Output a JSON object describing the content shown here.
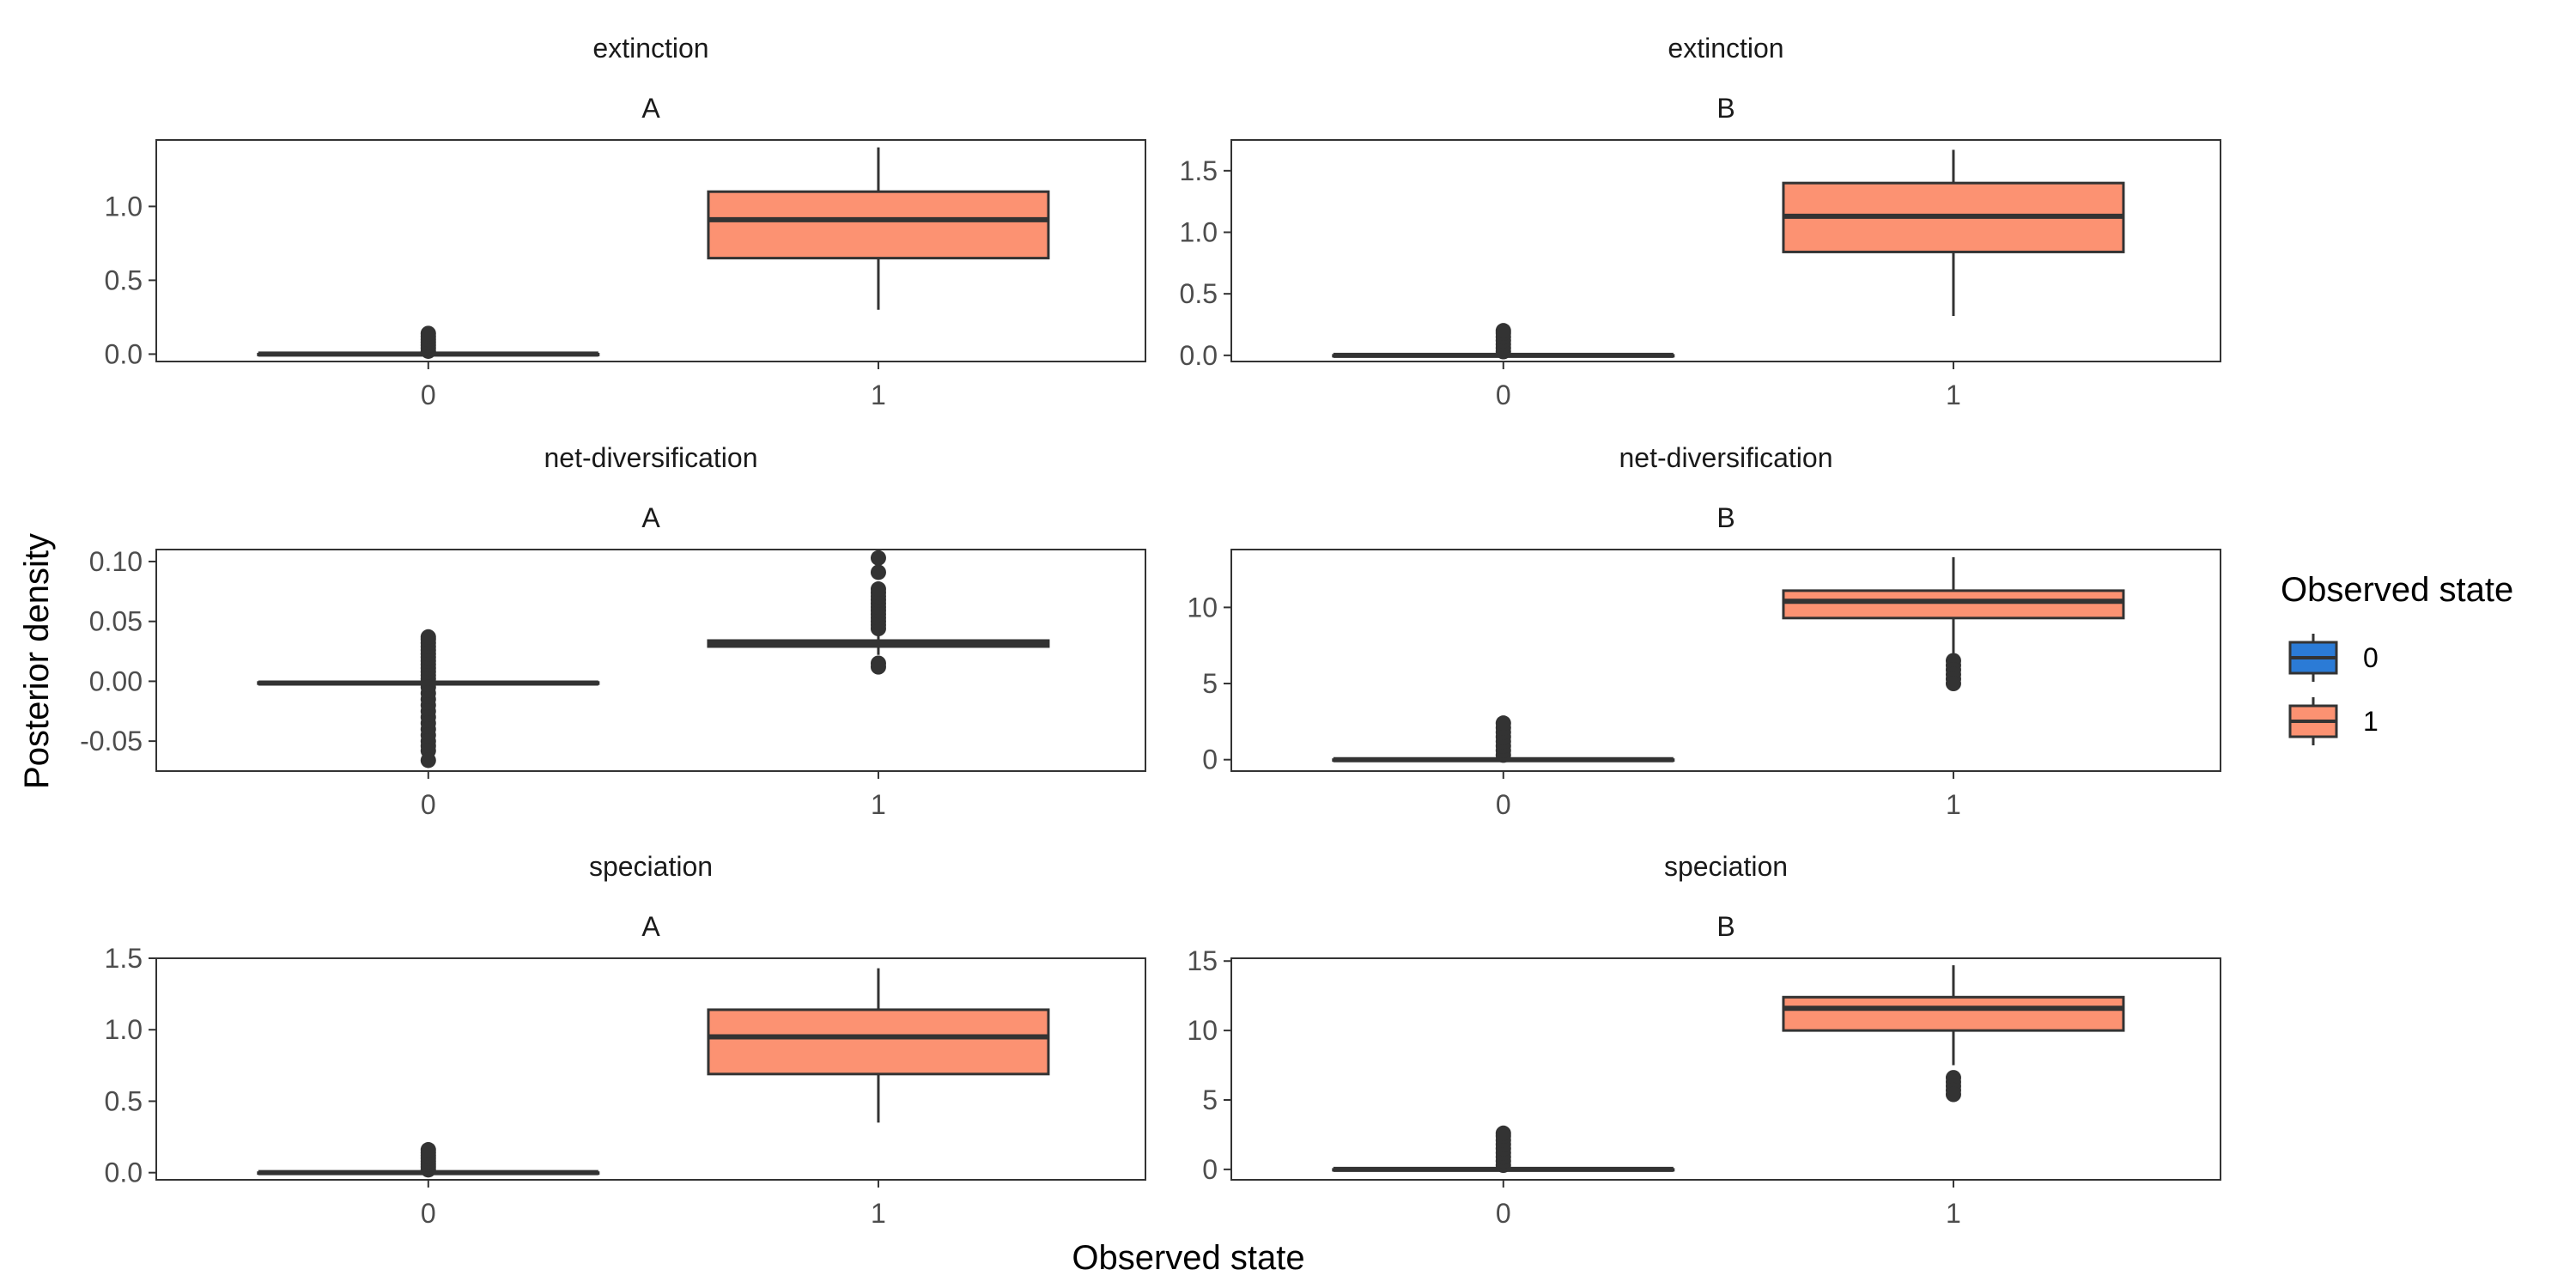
{
  "chart_data": {
    "type": "box",
    "xlabel": "Observed state",
    "ylabel": "Posterior density",
    "legend": {
      "title": "Observed state",
      "position": "right",
      "entries": [
        {
          "label": "0",
          "color": "#2B7BD6"
        },
        {
          "label": "1",
          "color": "#FC9272"
        }
      ]
    },
    "grid": false,
    "categories": [
      "0",
      "1"
    ],
    "panels": [
      {
        "facet_top": "extinction",
        "facet_sub": "A",
        "ylim": [
          -0.05,
          1.45
        ],
        "yticks": [
          0.0,
          0.5,
          1.0
        ],
        "tick_labels": [
          "0.0",
          "0.5",
          "1.0"
        ],
        "boxes": [
          {
            "category": "0",
            "q1": 0.0,
            "median": 0.0,
            "q3": 0.0,
            "whisker_low": 0.0,
            "whisker_high": 0.0,
            "outliers": [
              0.02,
              0.04,
              0.06,
              0.08,
              0.1,
              0.12,
              0.14
            ]
          },
          {
            "category": "1",
            "q1": 0.65,
            "median": 0.91,
            "q3": 1.1,
            "whisker_low": 0.3,
            "whisker_high": 1.4,
            "outliers": []
          }
        ]
      },
      {
        "facet_top": "extinction",
        "facet_sub": "B",
        "ylim": [
          -0.05,
          1.75
        ],
        "yticks": [
          0.0,
          0.5,
          1.0,
          1.5
        ],
        "tick_labels": [
          "0.0",
          "0.5",
          "1.0",
          "1.5"
        ],
        "boxes": [
          {
            "category": "0",
            "q1": 0.0,
            "median": 0.0,
            "q3": 0.0,
            "whisker_low": 0.0,
            "whisker_high": 0.0,
            "outliers": [
              0.03,
              0.06,
              0.09,
              0.12,
              0.15,
              0.18,
              0.2
            ]
          },
          {
            "category": "1",
            "q1": 0.84,
            "median": 1.13,
            "q3": 1.4,
            "whisker_low": 0.32,
            "whisker_high": 1.67,
            "outliers": []
          }
        ]
      },
      {
        "facet_top": "net-diversification",
        "facet_sub": "A",
        "ylim": [
          -0.075,
          0.11
        ],
        "yticks": [
          -0.05,
          0.0,
          0.05,
          0.1
        ],
        "tick_labels": [
          "-0.05",
          "0.00",
          "0.05",
          "0.10"
        ],
        "boxes": [
          {
            "category": "0",
            "q1": -0.002,
            "median": -0.0015,
            "q3": -0.001,
            "whisker_low": -0.002,
            "whisker_high": -0.001,
            "outliers": [
              0.002,
              0.005,
              0.008,
              0.011,
              0.014,
              0.017,
              0.02,
              0.023,
              0.026,
              0.029,
              0.032,
              0.035,
              0.037,
              -0.005,
              -0.01,
              -0.015,
              -0.02,
              -0.025,
              -0.03,
              -0.035,
              -0.04,
              -0.045,
              -0.05,
              -0.054,
              -0.058,
              -0.066
            ]
          },
          {
            "category": "1",
            "q1": 0.029,
            "median": 0.0315,
            "q3": 0.034,
            "whisker_low": 0.022,
            "whisker_high": 0.041,
            "outliers": [
              0.044,
              0.047,
              0.05,
              0.053,
              0.056,
              0.059,
              0.062,
              0.065,
              0.068,
              0.071,
              0.074,
              0.077,
              0.091,
              0.103,
              0.015,
              0.012
            ]
          }
        ]
      },
      {
        "facet_top": "net-diversification",
        "facet_sub": "B",
        "ylim": [
          -0.75,
          13.8
        ],
        "yticks": [
          0,
          5,
          10
        ],
        "tick_labels": [
          "0",
          "5",
          "10"
        ],
        "boxes": [
          {
            "category": "0",
            "q1": 0.0,
            "median": 0.0,
            "q3": 0.0,
            "whisker_low": 0.0,
            "whisker_high": 0.0,
            "outliers": [
              0.3,
              0.6,
              0.9,
              1.2,
              1.5,
              1.8,
              2.1,
              2.4
            ]
          },
          {
            "category": "1",
            "q1": 9.3,
            "median": 10.4,
            "q3": 11.1,
            "whisker_low": 7.0,
            "whisker_high": 13.3,
            "outliers": [
              6.5,
              6.2,
              5.9,
              5.6,
              5.3,
              5.0
            ]
          }
        ]
      },
      {
        "facet_top": "speciation",
        "facet_sub": "A",
        "ylim": [
          -0.05,
          1.5
        ],
        "yticks": [
          0.0,
          0.5,
          1.0,
          1.5
        ],
        "tick_labels": [
          "0.0",
          "0.5",
          "1.0",
          "1.5"
        ],
        "boxes": [
          {
            "category": "0",
            "q1": 0.0,
            "median": 0.0,
            "q3": 0.0,
            "whisker_low": 0.0,
            "whisker_high": 0.0,
            "outliers": [
              0.02,
              0.04,
              0.06,
              0.08,
              0.1,
              0.12,
              0.14,
              0.16
            ]
          },
          {
            "category": "1",
            "q1": 0.69,
            "median": 0.95,
            "q3": 1.14,
            "whisker_low": 0.35,
            "whisker_high": 1.43,
            "outliers": []
          }
        ]
      },
      {
        "facet_top": "speciation",
        "facet_sub": "B",
        "ylim": [
          -0.75,
          15.2
        ],
        "yticks": [
          0,
          5,
          10,
          15
        ],
        "tick_labels": [
          "0",
          "5",
          "10",
          "15"
        ],
        "boxes": [
          {
            "category": "0",
            "q1": 0.0,
            "median": 0.0,
            "q3": 0.0,
            "whisker_low": 0.0,
            "whisker_high": 0.0,
            "outliers": [
              0.3,
              0.6,
              0.9,
              1.2,
              1.5,
              1.8,
              2.1,
              2.4,
              2.6
            ]
          },
          {
            "category": "1",
            "q1": 10.0,
            "median": 11.6,
            "q3": 12.4,
            "whisker_low": 7.5,
            "whisker_high": 14.7,
            "outliers": [
              6.6,
              6.3,
              6.0,
              5.7,
              5.4
            ]
          }
        ]
      }
    ]
  }
}
